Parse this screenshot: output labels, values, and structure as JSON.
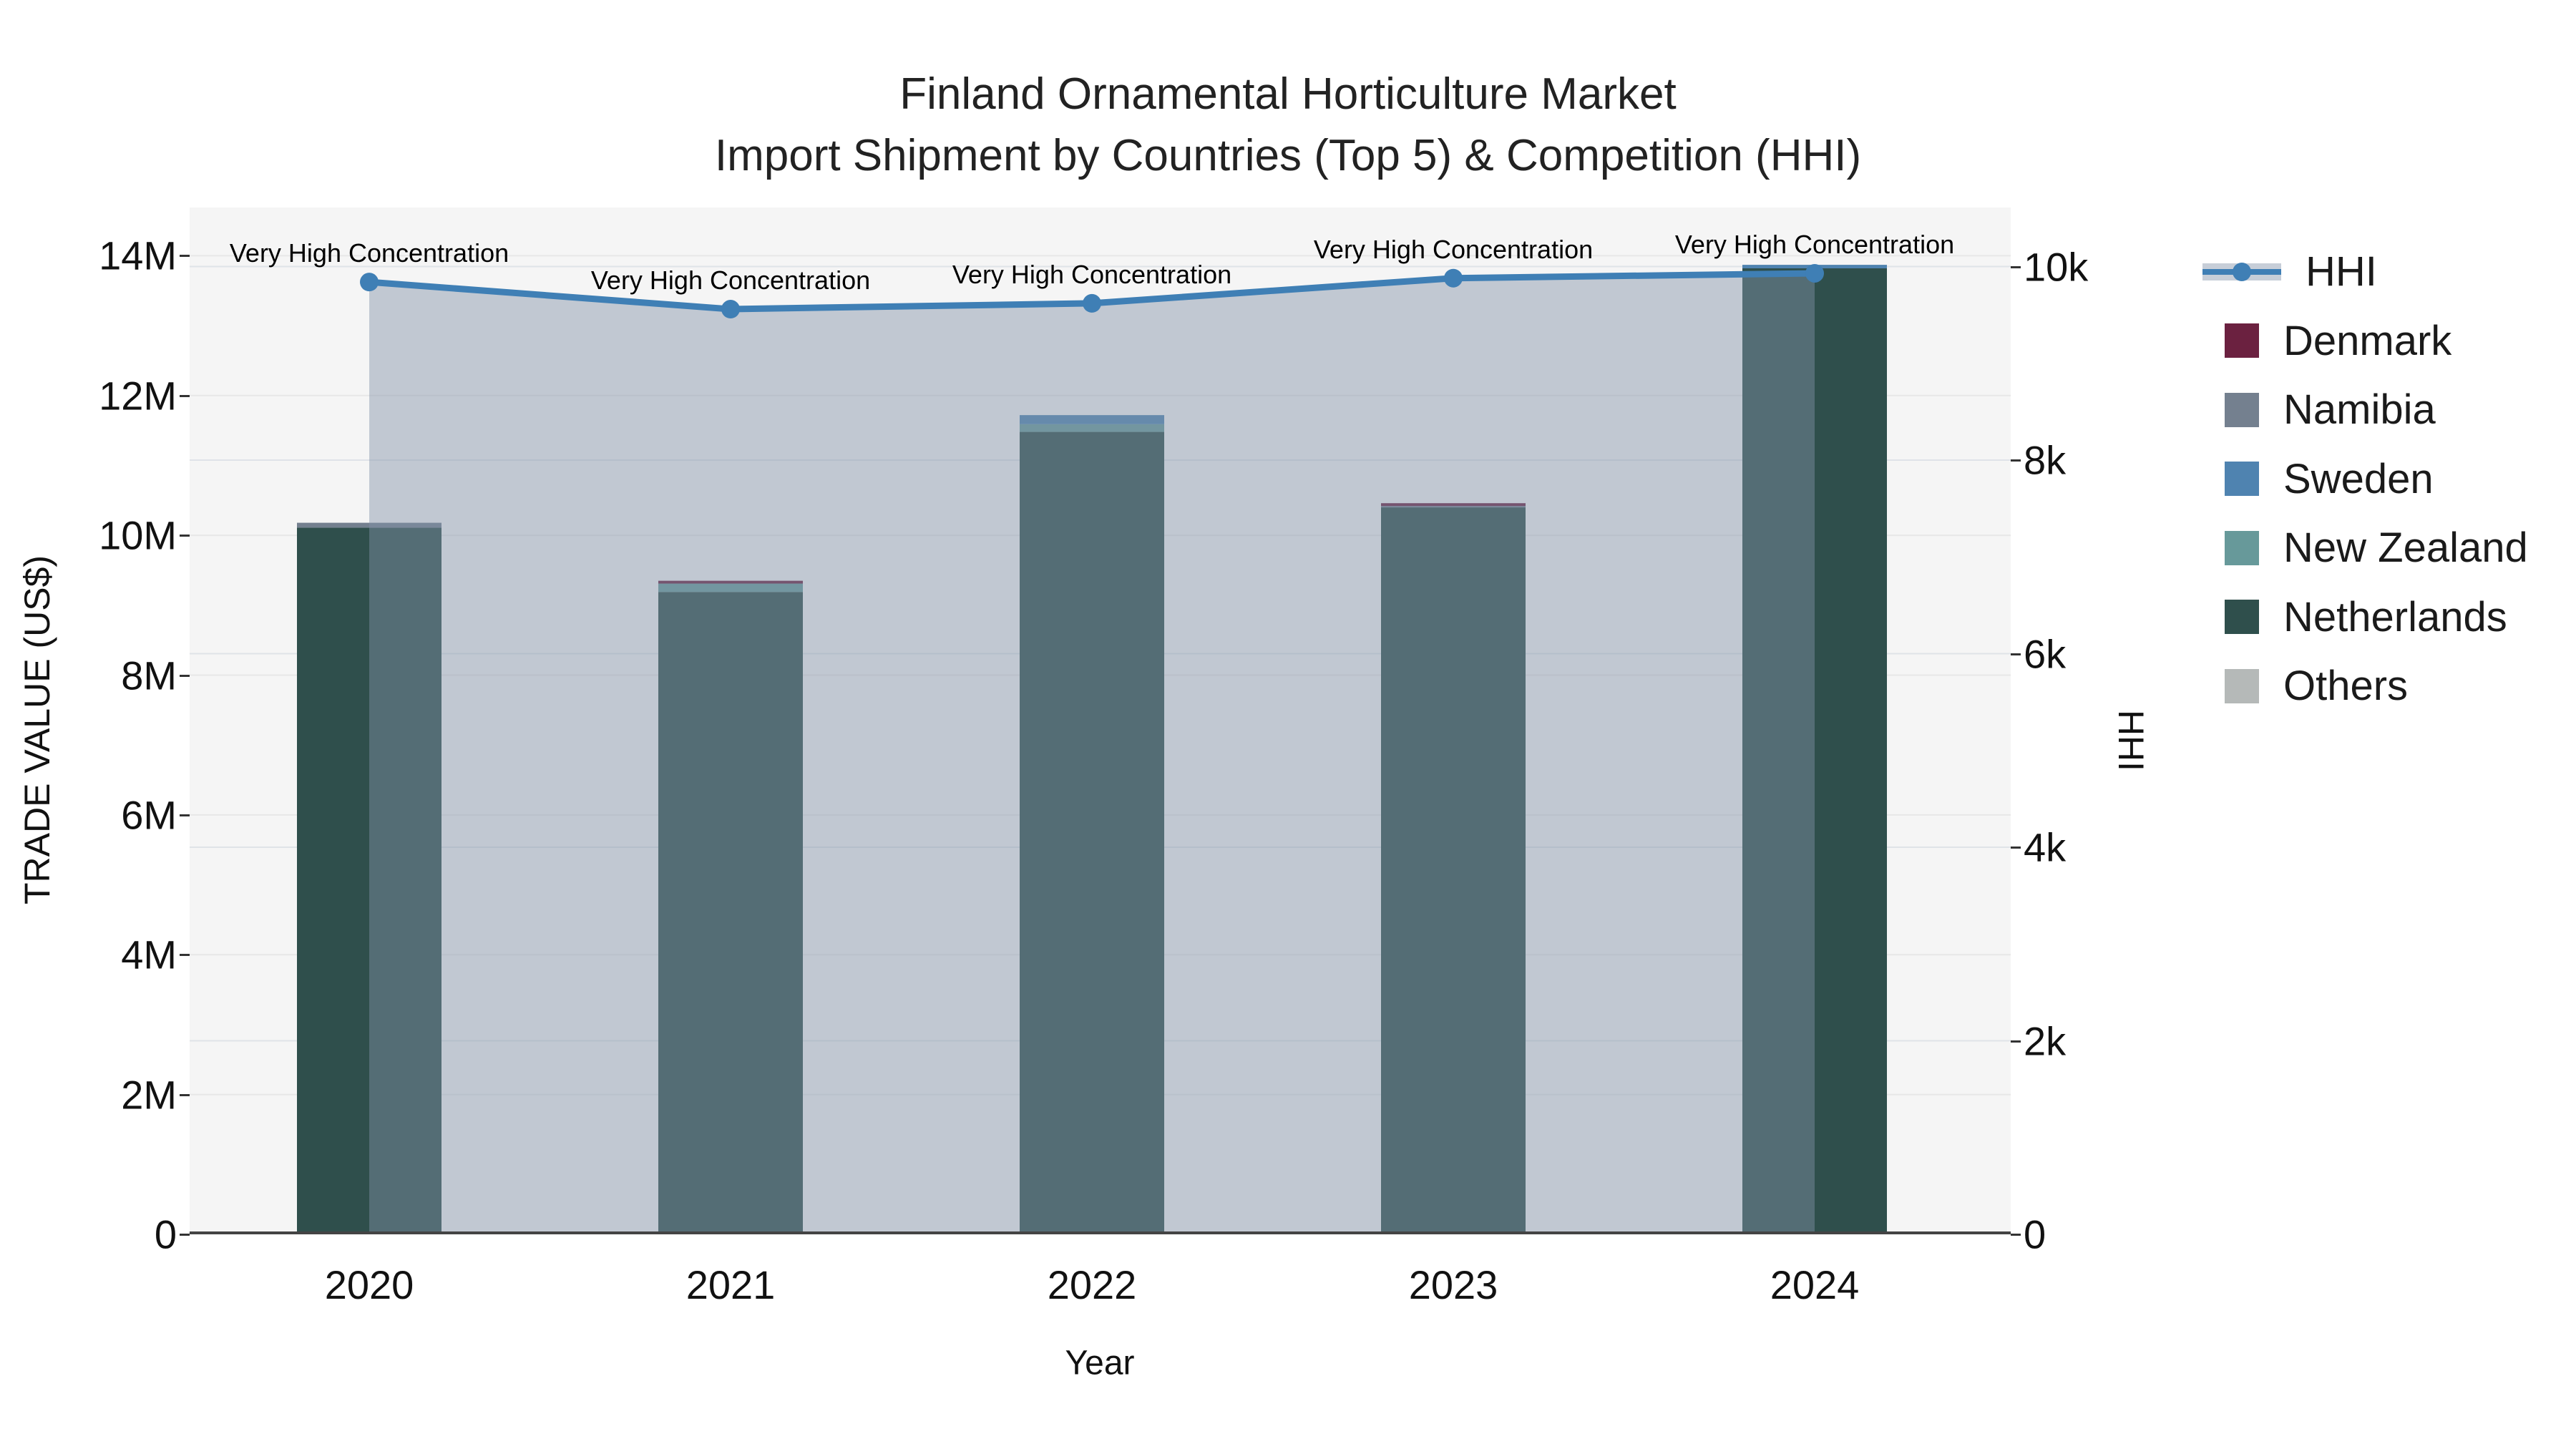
{
  "title": {
    "line1": "Finland Ornamental Horticulture Market",
    "line2": "Import Shipment by Countries (Top 5) & Competition (HHI)"
  },
  "axes": {
    "x": {
      "title": "Year",
      "tick_labels": [
        "2020",
        "2021",
        "2022",
        "2023",
        "2024"
      ]
    },
    "y_left": {
      "title": "TRADE VALUE (US$)",
      "tick_labels": [
        "0",
        "2M",
        "4M",
        "6M",
        "8M",
        "10M",
        "12M",
        "14M"
      ],
      "tick_values_musd": [
        0,
        2,
        4,
        6,
        8,
        10,
        12,
        14
      ]
    },
    "y_right": {
      "title": "HHI",
      "tick_labels": [
        "0",
        "2k",
        "4k",
        "6k",
        "8k",
        "10k"
      ],
      "tick_values": [
        0,
        2000,
        4000,
        6000,
        8000,
        10000
      ]
    }
  },
  "legend": {
    "items": [
      {
        "label": "HHI",
        "type": "line",
        "color": "#3f7fb5"
      },
      {
        "label": "Denmark",
        "type": "swatch",
        "color": "#6b2140"
      },
      {
        "label": "Namibia",
        "type": "swatch",
        "color": "#74808f"
      },
      {
        "label": "Sweden",
        "type": "swatch",
        "color": "#4f83b0"
      },
      {
        "label": "New Zealand",
        "type": "swatch",
        "color": "#67999a"
      },
      {
        "label": "Netherlands",
        "type": "swatch",
        "color": "#2f4f4c"
      },
      {
        "label": "Others",
        "type": "swatch",
        "color": "#b5b9b8"
      }
    ]
  },
  "colors": {
    "plot_background": "#f5f5f5",
    "grid_left": "#e7e7e7",
    "grid_right": "#dfe3e8",
    "axis_line": "#444444",
    "hhi_line": "#3f7fb5",
    "hhi_area_fill": "rgba(130,146,168,0.45)"
  },
  "chart_data": {
    "type": "combo-stacked-bar-line",
    "categories": [
      "2020",
      "2021",
      "2022",
      "2023",
      "2024"
    ],
    "bar_unit": "US$ millions",
    "bar_series": [
      {
        "name": "Netherlands",
        "color": "#2f4f4c",
        "values_musd": [
          10.11,
          9.19,
          11.48,
          10.4,
          13.82
        ]
      },
      {
        "name": "New Zealand",
        "color": "#67999a",
        "values_musd": [
          0,
          0.12,
          0.11,
          0,
          0
        ]
      },
      {
        "name": "Sweden",
        "color": "#4f83b0",
        "values_musd": [
          0,
          0,
          0.13,
          0,
          0.05
        ]
      },
      {
        "name": "Namibia",
        "color": "#74808f",
        "values_musd": [
          0.07,
          0,
          0,
          0.02,
          0
        ]
      },
      {
        "name": "Denmark",
        "color": "#6b2140",
        "values_musd": [
          0,
          0.04,
          0,
          0.04,
          0
        ]
      },
      {
        "name": "Others",
        "color": "#b5b9b8",
        "values_musd": [
          0,
          0,
          0,
          0,
          0
        ]
      }
    ],
    "bar_totals_musd": [
      10.18,
      9.35,
      11.72,
      10.46,
      13.87
    ],
    "line_series": {
      "name": "HHI",
      "axis": "right",
      "color": "#3f7fb5",
      "values": [
        9840,
        9560,
        9620,
        9880,
        9930
      ]
    },
    "point_annotations": [
      "Very High Concentration",
      "Very High Concentration",
      "Very High Concentration",
      "Very High Concentration",
      "Very High Concentration"
    ],
    "title": "Finland Ornamental Horticulture Market — Import Shipment by Countries (Top 5) & Competition (HHI)",
    "xlabel": "Year",
    "ylabel_left": "TRADE VALUE (US$)",
    "ylabel_right": "HHI",
    "ylim_left_musd": [
      0,
      14.69
    ],
    "ylim_right": [
      0,
      10610
    ],
    "grid": true,
    "legend_position": "right"
  }
}
